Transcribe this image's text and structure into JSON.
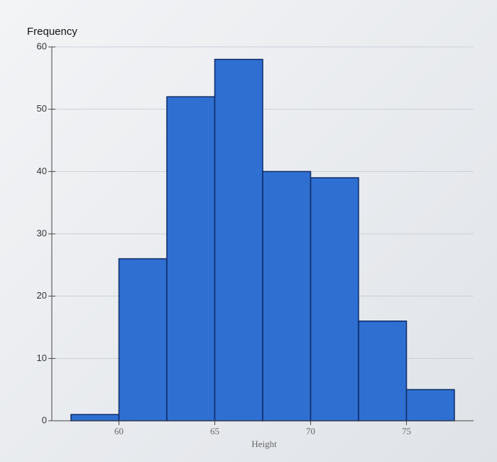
{
  "chart_data": {
    "type": "histogram",
    "y_label": "Frequency",
    "x_label": "Height",
    "bins": [
      57.5,
      60,
      62.5,
      65,
      67.5,
      70,
      72.5,
      75,
      77.5
    ],
    "counts": [
      1,
      26,
      52,
      58,
      40,
      39,
      16,
      5
    ],
    "color": "#2f6fd1",
    "edge_color": "#0d2a66",
    "xlim": [
      56.5,
      78.5
    ],
    "xticks": [
      60,
      65,
      70,
      75
    ],
    "ylim": [
      0,
      60
    ],
    "yticks": [
      0,
      10,
      20,
      30,
      40,
      50,
      60
    ],
    "grid": true
  }
}
